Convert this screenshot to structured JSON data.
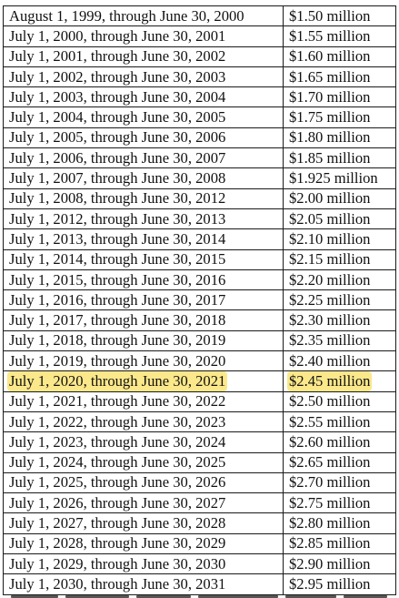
{
  "schedule": {
    "rows": [
      {
        "period": "August 1, 1999, through June 30, 2000",
        "amount": "$1.50 million"
      },
      {
        "period": "July 1, 2000, through June 30, 2001",
        "amount": "$1.55 million"
      },
      {
        "period": "July 1, 2001, through June 30, 2002",
        "amount": "$1.60 million"
      },
      {
        "period": "July 1, 2002, through June 30, 2003",
        "amount": "$1.65 million"
      },
      {
        "period": "July 1, 2003, through June 30, 2004",
        "amount": "$1.70 million"
      },
      {
        "period": "July 1, 2004, through June 30, 2005",
        "amount": "$1.75 million"
      },
      {
        "period": "July 1, 2005, through June 30, 2006",
        "amount": "$1.80 million"
      },
      {
        "period": "July 1, 2006, through June 30, 2007",
        "amount": "$1.85 million"
      },
      {
        "period": "July 1, 2007, through June 30, 2008",
        "amount": "$1.925 million"
      },
      {
        "period": "July 1, 2008, through June 30, 2012",
        "amount": "$2.00 million"
      },
      {
        "period": "July 1, 2012, through June 30, 2013",
        "amount": "$2.05 million"
      },
      {
        "period": "July 1, 2013, through June 30, 2014",
        "amount": "$2.10 million"
      },
      {
        "period": "July 1, 2014, through June 30, 2015",
        "amount": "$2.15 million"
      },
      {
        "period": "July 1, 2015, through June 30, 2016",
        "amount": "$2.20 million"
      },
      {
        "period": "July 1, 2016, through June 30, 2017",
        "amount": "$2.25 million"
      },
      {
        "period": "July 1, 2017, through June 30, 2018",
        "amount": "$2.30 million"
      },
      {
        "period": "July 1, 2018, through June 30, 2019",
        "amount": "$2.35 million"
      },
      {
        "period": "July 1, 2019, through June 30, 2020",
        "amount": "$2.40 million"
      },
      {
        "period": "July 1, 2020, through June 30, 2021",
        "amount": "$2.45 million",
        "highlighted": true
      },
      {
        "period": "July 1, 2021, through June 30, 2022",
        "amount": "$2.50 million"
      },
      {
        "period": "July 1, 2022, through June 30, 2023",
        "amount": "$2.55 million"
      },
      {
        "period": "July 1, 2023, through June 30, 2024",
        "amount": "$2.60 million"
      },
      {
        "period": "July 1, 2024, through June 30, 2025",
        "amount": "$2.65 million"
      },
      {
        "period": "July 1, 2025, through June 30, 2026",
        "amount": "$2.70 million"
      },
      {
        "period": "July 1, 2026, through June 30, 2027",
        "amount": "$2.75 million"
      },
      {
        "period": "July 1, 2027, through June 30, 2028",
        "amount": "$2.80 million"
      },
      {
        "period": "July 1, 2028, through June 30, 2029",
        "amount": "$2.85 million"
      },
      {
        "period": "July 1, 2029, through June 30, 2030",
        "amount": "$2.90 million"
      },
      {
        "period": "July 1, 2030, through June 30, 2031",
        "amount": "$2.95 million"
      }
    ]
  },
  "colors": {
    "highlight": "#fbe88a",
    "border": "#1a1a1a",
    "text": "#111111"
  }
}
